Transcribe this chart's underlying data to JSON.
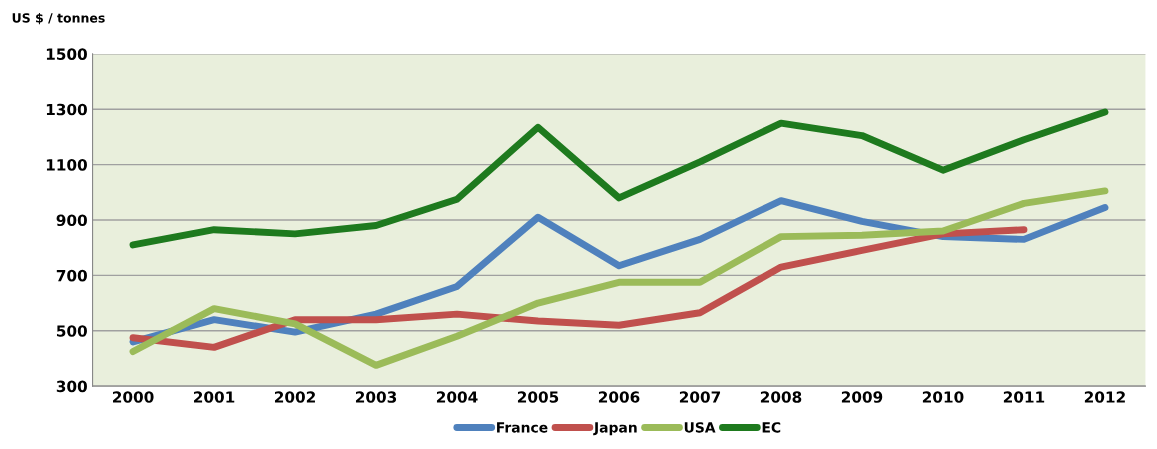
{
  "chart_data": {
    "type": "line",
    "ylabel": "US $ / tonnes",
    "categories": [
      "2000",
      "2001",
      "2002",
      "2003",
      "2004",
      "2005",
      "2006",
      "2007",
      "2008",
      "2009",
      "2010",
      "2011",
      "2012"
    ],
    "series": [
      {
        "name": "France",
        "color": "#4f81bd",
        "values": [
          460,
          540,
          495,
          560,
          660,
          910,
          735,
          830,
          970,
          895,
          840,
          830,
          945
        ]
      },
      {
        "name": "Japan",
        "color": "#c0504d",
        "values": [
          475,
          440,
          540,
          540,
          560,
          535,
          520,
          565,
          730,
          790,
          850,
          865,
          null
        ]
      },
      {
        "name": "USA",
        "color": "#9bbb59",
        "values": [
          425,
          580,
          525,
          375,
          480,
          600,
          675,
          675,
          840,
          845,
          860,
          960,
          1005
        ]
      },
      {
        "name": "EC",
        "color": "#1e7a1e",
        "values": [
          810,
          865,
          850,
          880,
          975,
          1235,
          980,
          1110,
          1250,
          1205,
          1080,
          1190,
          1290
        ]
      }
    ],
    "ylim": [
      300,
      1500
    ],
    "yticks": [
      300,
      500,
      700,
      900,
      1100,
      1300,
      1500
    ],
    "grid": "y",
    "legend": "bottom",
    "marker": "none",
    "line_style": "solid"
  }
}
